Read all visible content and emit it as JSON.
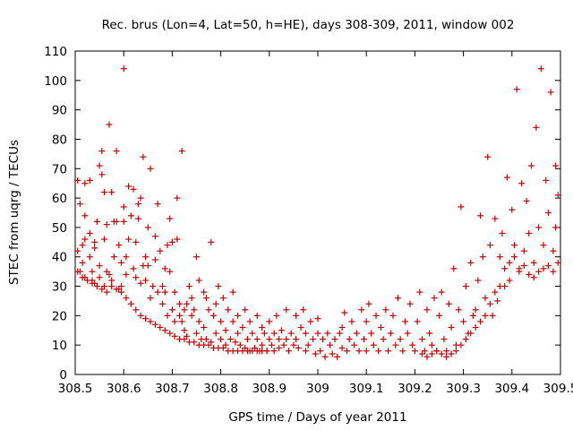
{
  "chart_data": {
    "type": "scatter",
    "title": "Rec. brus (Lon=4, Lat=50, h=HE), days 308-309, 2011, window 002",
    "xlabel": "GPS time / Days of year 2011",
    "ylabel": "STEC from uqrg / TECUs",
    "xlim": [
      308.5,
      309.5
    ],
    "ylim": [
      0,
      110
    ],
    "xticks": [
      "308.5",
      "308.6",
      "308.7",
      "308.8",
      "308.9",
      "309",
      "309.1",
      "309.2",
      "309.3",
      "309.4",
      "309.5"
    ],
    "yticks": [
      "0",
      "10",
      "20",
      "30",
      "40",
      "50",
      "60",
      "70",
      "80",
      "90",
      "100",
      "110"
    ],
    "grid": false,
    "legend": "none",
    "marker": "plus",
    "color": "#cc0000",
    "points": [
      [
        308.505,
        66
      ],
      [
        308.51,
        35
      ],
      [
        308.505,
        42
      ],
      [
        308.51,
        58
      ],
      [
        308.52,
        54
      ],
      [
        308.52,
        46
      ],
      [
        308.515,
        44
      ],
      [
        308.515,
        38
      ],
      [
        308.52,
        33
      ],
      [
        308.52,
        65
      ],
      [
        308.53,
        66
      ],
      [
        308.53,
        48
      ],
      [
        308.53,
        40
      ],
      [
        308.535,
        35
      ],
      [
        308.535,
        32
      ],
      [
        308.54,
        31
      ],
      [
        308.54,
        45
      ],
      [
        308.54,
        43
      ],
      [
        308.55,
        71
      ],
      [
        308.545,
        52
      ],
      [
        308.55,
        33
      ],
      [
        308.55,
        37
      ],
      [
        308.555,
        76
      ],
      [
        308.555,
        68
      ],
      [
        308.56,
        30
      ],
      [
        308.56,
        62
      ],
      [
        308.56,
        46
      ],
      [
        308.565,
        51
      ],
      [
        308.565,
        35
      ],
      [
        308.57,
        34
      ],
      [
        308.57,
        85
      ],
      [
        308.575,
        62
      ],
      [
        308.575,
        32
      ],
      [
        308.58,
        40
      ],
      [
        308.58,
        52
      ],
      [
        308.585,
        76
      ],
      [
        308.585,
        52
      ],
      [
        308.59,
        29
      ],
      [
        308.59,
        44
      ],
      [
        308.595,
        38
      ],
      [
        308.595,
        30
      ],
      [
        308.6,
        104
      ],
      [
        308.6,
        57
      ],
      [
        308.6,
        52
      ],
      [
        308.605,
        40
      ],
      [
        308.605,
        34
      ],
      [
        308.61,
        46
      ],
      [
        308.61,
        64
      ],
      [
        308.615,
        54
      ],
      [
        308.62,
        63
      ],
      [
        308.62,
        36
      ],
      [
        308.625,
        45
      ],
      [
        308.625,
        33
      ],
      [
        308.63,
        58
      ],
      [
        308.63,
        53
      ],
      [
        308.635,
        60
      ],
      [
        308.635,
        31
      ],
      [
        308.64,
        74
      ],
      [
        308.64,
        37
      ],
      [
        308.645,
        40
      ],
      [
        308.645,
        32
      ],
      [
        308.65,
        50
      ],
      [
        308.65,
        37
      ],
      [
        308.655,
        70
      ],
      [
        308.655,
        26
      ],
      [
        308.66,
        30
      ],
      [
        308.665,
        47
      ],
      [
        308.665,
        39
      ],
      [
        308.67,
        28
      ],
      [
        308.67,
        58
      ],
      [
        308.675,
        42
      ],
      [
        308.68,
        30
      ],
      [
        308.68,
        24
      ],
      [
        308.685,
        36
      ],
      [
        308.685,
        28
      ],
      [
        308.69,
        44
      ],
      [
        308.69,
        20
      ],
      [
        308.695,
        53
      ],
      [
        308.695,
        35
      ],
      [
        308.7,
        45
      ],
      [
        308.7,
        22
      ],
      [
        308.705,
        18
      ],
      [
        308.705,
        28
      ],
      [
        308.71,
        60
      ],
      [
        308.71,
        46
      ],
      [
        308.715,
        24
      ],
      [
        308.715,
        20
      ],
      [
        308.72,
        18
      ],
      [
        308.72,
        76
      ],
      [
        308.725,
        15
      ],
      [
        308.725,
        22
      ],
      [
        308.73,
        24
      ],
      [
        308.73,
        13
      ],
      [
        308.735,
        30
      ],
      [
        308.74,
        26
      ],
      [
        308.74,
        20
      ],
      [
        308.745,
        22
      ],
      [
        308.75,
        40
      ],
      [
        308.75,
        14
      ],
      [
        308.755,
        32
      ],
      [
        308.755,
        18
      ],
      [
        308.76,
        12
      ],
      [
        308.765,
        28
      ],
      [
        308.765,
        16
      ],
      [
        308.77,
        26
      ],
      [
        308.77,
        12
      ],
      [
        308.775,
        22
      ],
      [
        308.78,
        45
      ],
      [
        308.78,
        11
      ],
      [
        308.785,
        20
      ],
      [
        308.79,
        24
      ],
      [
        308.79,
        14
      ],
      [
        308.795,
        30
      ],
      [
        308.8,
        18
      ],
      [
        308.8,
        12
      ],
      [
        308.805,
        26
      ],
      [
        308.81,
        15
      ],
      [
        308.81,
        10
      ],
      [
        308.815,
        22
      ],
      [
        308.82,
        12
      ],
      [
        308.825,
        28
      ],
      [
        308.825,
        18
      ],
      [
        308.83,
        11
      ],
      [
        308.835,
        20
      ],
      [
        308.835,
        14
      ],
      [
        308.84,
        10
      ],
      [
        308.845,
        16
      ],
      [
        308.85,
        9
      ],
      [
        308.85,
        22
      ],
      [
        308.855,
        12
      ],
      [
        308.86,
        8
      ],
      [
        308.86,
        18
      ],
      [
        308.865,
        14
      ],
      [
        308.87,
        9
      ],
      [
        308.875,
        20
      ],
      [
        308.875,
        12
      ],
      [
        308.88,
        8
      ],
      [
        308.885,
        16
      ],
      [
        308.885,
        10
      ],
      [
        308.89,
        14
      ],
      [
        308.895,
        8
      ],
      [
        308.9,
        12
      ],
      [
        308.9,
        18
      ],
      [
        308.905,
        10
      ],
      [
        308.91,
        14
      ],
      [
        308.91,
        8
      ],
      [
        308.915,
        20
      ],
      [
        308.92,
        12
      ],
      [
        308.92,
        9
      ],
      [
        308.925,
        15
      ],
      [
        308.93,
        10
      ],
      [
        308.935,
        22
      ],
      [
        308.935,
        12
      ],
      [
        308.94,
        8
      ],
      [
        308.945,
        14
      ],
      [
        308.95,
        10
      ],
      [
        308.955,
        20
      ],
      [
        308.955,
        12
      ],
      [
        308.96,
        9
      ],
      [
        308.965,
        16
      ],
      [
        308.97,
        22
      ],
      [
        308.975,
        8
      ],
      [
        308.975,
        14
      ],
      [
        308.98,
        10
      ],
      [
        308.985,
        18
      ],
      [
        308.99,
        12
      ],
      [
        308.995,
        7
      ],
      [
        309.0,
        14
      ],
      [
        309.0,
        19
      ],
      [
        309.005,
        8
      ],
      [
        309.01,
        12
      ],
      [
        309.015,
        6
      ],
      [
        309.02,
        14
      ],
      [
        309.025,
        10
      ],
      [
        309.03,
        7
      ],
      [
        309.035,
        12
      ],
      [
        309.04,
        6
      ],
      [
        309.045,
        14
      ],
      [
        309.05,
        9
      ],
      [
        309.05,
        16
      ],
      [
        309.055,
        21
      ],
      [
        309.06,
        8
      ],
      [
        309.065,
        12
      ],
      [
        309.07,
        18
      ],
      [
        309.075,
        10
      ],
      [
        309.08,
        14
      ],
      [
        309.085,
        8
      ],
      [
        309.09,
        22
      ],
      [
        309.095,
        12
      ],
      [
        309.1,
        8
      ],
      [
        309.1,
        18
      ],
      [
        309.105,
        24
      ],
      [
        309.11,
        14
      ],
      [
        309.115,
        10
      ],
      [
        309.12,
        20
      ],
      [
        309.125,
        8
      ],
      [
        309.13,
        16
      ],
      [
        309.135,
        12
      ],
      [
        309.14,
        22
      ],
      [
        309.145,
        8
      ],
      [
        309.15,
        14
      ],
      [
        309.155,
        20
      ],
      [
        309.16,
        10
      ],
      [
        309.165,
        26
      ],
      [
        309.17,
        12
      ],
      [
        309.175,
        8
      ],
      [
        309.18,
        18
      ],
      [
        309.185,
        14
      ],
      [
        309.19,
        24
      ],
      [
        309.195,
        10
      ],
      [
        309.2,
        8
      ],
      [
        309.205,
        18
      ],
      [
        309.21,
        28
      ],
      [
        309.215,
        12
      ],
      [
        309.22,
        8
      ],
      [
        309.225,
        22
      ],
      [
        309.23,
        14
      ],
      [
        309.235,
        10
      ],
      [
        309.24,
        26
      ],
      [
        309.245,
        8
      ],
      [
        309.25,
        20
      ],
      [
        309.255,
        28
      ],
      [
        309.26,
        12
      ],
      [
        309.265,
        8
      ],
      [
        309.27,
        24
      ],
      [
        309.275,
        16
      ],
      [
        309.28,
        36
      ],
      [
        309.285,
        10
      ],
      [
        309.29,
        22
      ],
      [
        309.295,
        57
      ],
      [
        309.3,
        18
      ],
      [
        309.305,
        30
      ],
      [
        309.31,
        14
      ],
      [
        309.315,
        38
      ],
      [
        309.32,
        20
      ],
      [
        309.325,
        22
      ],
      [
        309.33,
        32
      ],
      [
        309.335,
        54
      ],
      [
        309.34,
        40
      ],
      [
        309.345,
        26
      ],
      [
        309.35,
        74
      ],
      [
        309.355,
        44
      ],
      [
        309.36,
        20
      ],
      [
        309.365,
        53
      ],
      [
        309.37,
        25
      ],
      [
        309.375,
        40
      ],
      [
        309.38,
        48
      ],
      [
        309.385,
        30
      ],
      [
        309.39,
        67
      ],
      [
        309.395,
        38
      ],
      [
        309.4,
        56
      ],
      [
        309.405,
        44
      ],
      [
        309.41,
        97
      ],
      [
        309.415,
        36
      ],
      [
        309.42,
        65
      ],
      [
        309.425,
        42
      ],
      [
        309.43,
        59
      ],
      [
        309.435,
        48
      ],
      [
        309.44,
        71
      ],
      [
        309.445,
        38
      ],
      [
        309.45,
        84
      ],
      [
        309.455,
        50
      ],
      [
        309.46,
        104
      ],
      [
        309.465,
        44
      ],
      [
        309.47,
        66
      ],
      [
        309.475,
        55
      ],
      [
        309.48,
        96
      ],
      [
        309.485,
        42
      ],
      [
        309.49,
        71
      ],
      [
        309.495,
        61
      ],
      [
        309.49,
        50
      ],
      [
        309.495,
        38
      ],
      [
        309.485,
        35
      ],
      [
        309.475,
        37
      ],
      [
        309.465,
        36
      ],
      [
        309.455,
        35
      ],
      [
        309.445,
        33
      ],
      [
        309.435,
        34
      ],
      [
        309.425,
        37
      ],
      [
        309.415,
        35
      ],
      [
        309.405,
        40
      ],
      [
        309.395,
        32
      ],
      [
        309.385,
        36
      ],
      [
        309.375,
        30
      ],
      [
        309.365,
        28
      ],
      [
        309.355,
        24
      ],
      [
        309.345,
        20
      ],
      [
        309.335,
        18
      ],
      [
        309.325,
        16
      ],
      [
        309.315,
        14
      ],
      [
        309.305,
        12
      ],
      [
        309.295,
        10
      ],
      [
        309.285,
        8
      ],
      [
        309.275,
        7
      ],
      [
        309.265,
        6
      ],
      [
        309.255,
        7
      ],
      [
        309.245,
        8
      ],
      [
        309.235,
        7
      ],
      [
        309.225,
        6
      ],
      [
        309.215,
        7
      ],
      [
        308.505,
        35
      ],
      [
        308.515,
        33
      ],
      [
        308.525,
        32
      ],
      [
        308.535,
        31
      ],
      [
        308.545,
        30
      ],
      [
        308.555,
        29
      ],
      [
        308.565,
        28
      ],
      [
        308.575,
        30
      ],
      [
        308.585,
        29
      ],
      [
        308.595,
        28
      ],
      [
        308.605,
        26
      ],
      [
        308.615,
        24
      ],
      [
        308.625,
        22
      ],
      [
        308.635,
        20
      ],
      [
        308.645,
        19
      ],
      [
        308.655,
        18
      ],
      [
        308.665,
        17
      ],
      [
        308.675,
        16
      ],
      [
        308.685,
        15
      ],
      [
        308.695,
        14
      ],
      [
        308.705,
        13
      ],
      [
        308.715,
        12
      ],
      [
        308.725,
        12
      ],
      [
        308.735,
        11
      ],
      [
        308.745,
        11
      ],
      [
        308.755,
        10
      ],
      [
        308.765,
        10
      ],
      [
        308.775,
        10
      ],
      [
        308.785,
        9
      ],
      [
        308.795,
        9
      ],
      [
        308.805,
        9
      ],
      [
        308.815,
        8
      ],
      [
        308.825,
        8
      ],
      [
        308.835,
        8
      ],
      [
        308.845,
        8
      ],
      [
        308.855,
        8
      ],
      [
        308.865,
        8
      ],
      [
        308.875,
        8
      ],
      [
        308.885,
        8
      ],
      [
        308.895,
        8
      ]
    ]
  }
}
